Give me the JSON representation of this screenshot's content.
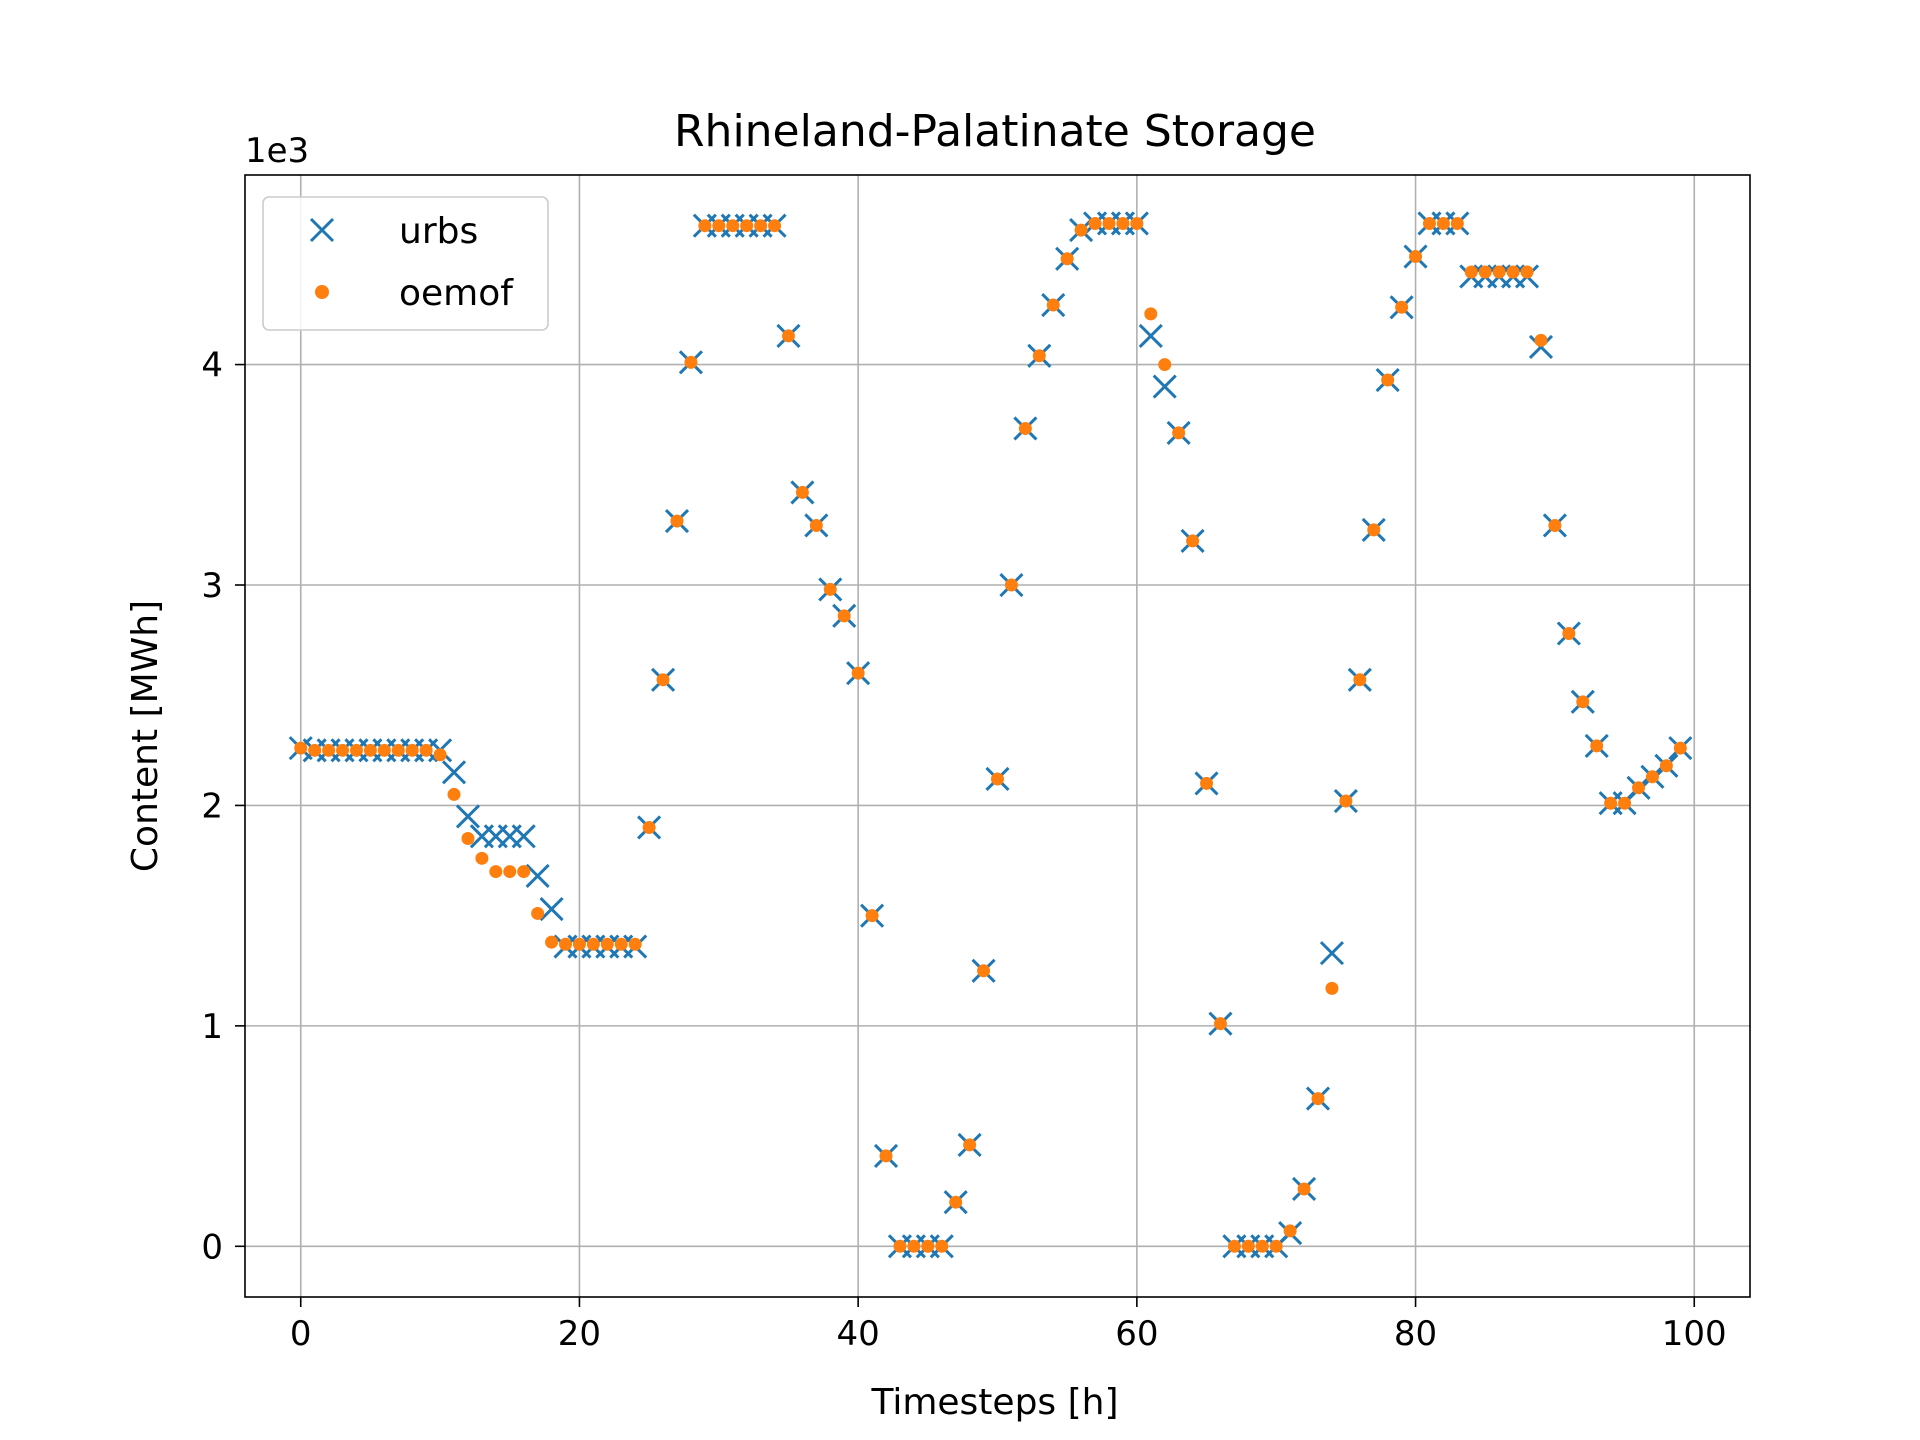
{
  "chart_data": {
    "type": "scatter",
    "title": "Rhineland-Palatinate Storage",
    "xlabel": "Timesteps [h]",
    "ylabel": "Content [MWh]",
    "y_offset_text": "1e3",
    "y_scale_factor": 1000,
    "xlim": [
      -4,
      104
    ],
    "ylim": [
      -230,
      4860
    ],
    "x_ticks": [
      0,
      20,
      40,
      60,
      80,
      100
    ],
    "y_ticks": [
      0,
      1000,
      2000,
      3000,
      4000
    ],
    "x_tick_labels": [
      "0",
      "20",
      "40",
      "60",
      "80",
      "100"
    ],
    "y_tick_labels": [
      "0",
      "1",
      "2",
      "3",
      "4"
    ],
    "grid": true,
    "legend": {
      "position": "top-left",
      "entries": [
        "urbs",
        "oemof"
      ]
    },
    "x": [
      0,
      1,
      2,
      3,
      4,
      5,
      6,
      7,
      8,
      9,
      10,
      11,
      12,
      13,
      14,
      15,
      16,
      17,
      18,
      19,
      20,
      21,
      22,
      23,
      24,
      25,
      26,
      27,
      28,
      29,
      30,
      31,
      32,
      33,
      34,
      35,
      36,
      37,
      38,
      39,
      40,
      41,
      42,
      43,
      44,
      45,
      46,
      47,
      48,
      49,
      50,
      51,
      52,
      53,
      54,
      55,
      56,
      57,
      58,
      59,
      60,
      61,
      62,
      63,
      64,
      65,
      66,
      67,
      68,
      69,
      70,
      71,
      72,
      73,
      74,
      75,
      76,
      77,
      78,
      79,
      80,
      81,
      82,
      83,
      84,
      85,
      86,
      87,
      88,
      89,
      90,
      91,
      92,
      93,
      94,
      95,
      96,
      97,
      98,
      99
    ],
    "series": [
      {
        "name": "urbs",
        "marker": "x",
        "color": "#1f77b4",
        "values": [
          2260,
          2250,
          2250,
          2250,
          2250,
          2250,
          2250,
          2250,
          2250,
          2250,
          2250,
          2150,
          1950,
          1860,
          1860,
          1860,
          1860,
          1680,
          1530,
          1360,
          1360,
          1360,
          1360,
          1360,
          1360,
          1900,
          2570,
          3290,
          4010,
          4630,
          4630,
          4630,
          4630,
          4630,
          4630,
          4130,
          3420,
          3270,
          2980,
          2860,
          2600,
          1500,
          410,
          0,
          0,
          0,
          0,
          200,
          460,
          1250,
          2120,
          3000,
          3710,
          4040,
          4270,
          4480,
          4610,
          4640,
          4640,
          4640,
          4640,
          4130,
          3900,
          3690,
          3200,
          2100,
          1010,
          0,
          0,
          0,
          0,
          60,
          260,
          670,
          1330,
          2020,
          2570,
          3250,
          3930,
          4260,
          4490,
          4640,
          4640,
          4640,
          4400,
          4400,
          4400,
          4400,
          4400,
          4080,
          3270,
          2780,
          2470,
          2270,
          2010,
          2010,
          2080,
          2130,
          2180,
          2260
        ]
      },
      {
        "name": "oemof",
        "marker": "o",
        "color": "#ff7f0e",
        "values": [
          2260,
          2250,
          2250,
          2250,
          2250,
          2250,
          2250,
          2250,
          2250,
          2250,
          2230,
          2050,
          1850,
          1760,
          1700,
          1700,
          1700,
          1510,
          1380,
          1370,
          1370,
          1370,
          1370,
          1370,
          1370,
          1900,
          2570,
          3290,
          4010,
          4630,
          4630,
          4630,
          4630,
          4630,
          4630,
          4130,
          3420,
          3270,
          2980,
          2860,
          2600,
          1500,
          410,
          0,
          0,
          0,
          0,
          200,
          460,
          1250,
          2120,
          3000,
          3710,
          4040,
          4270,
          4480,
          4610,
          4640,
          4640,
          4640,
          4640,
          4230,
          4000,
          3690,
          3200,
          2100,
          1010,
          0,
          0,
          0,
          0,
          70,
          260,
          670,
          1170,
          2020,
          2570,
          3250,
          3930,
          4260,
          4490,
          4640,
          4640,
          4640,
          4420,
          4420,
          4420,
          4420,
          4420,
          4110,
          3270,
          2780,
          2470,
          2270,
          2010,
          2010,
          2080,
          2130,
          2180,
          2260
        ]
      }
    ]
  }
}
